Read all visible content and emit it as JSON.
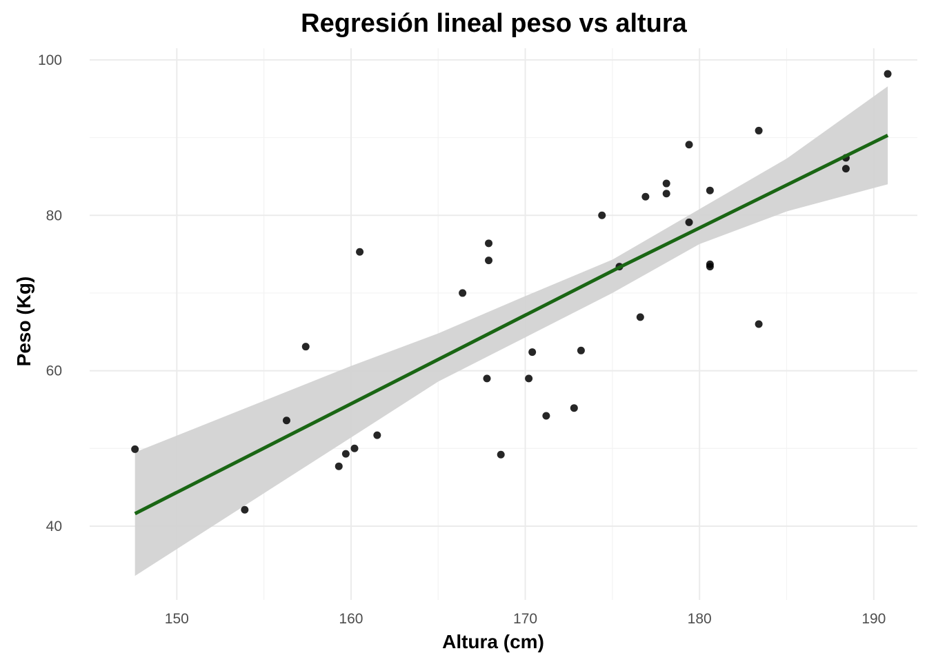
{
  "chart_data": {
    "type": "scatter",
    "title": "Regresión lineal peso vs altura",
    "xlabel": "Altura (cm)",
    "ylabel": "Peso (Kg)",
    "xlim": [
      145,
      192.5
    ],
    "ylim": [
      30.5,
      101.5
    ],
    "x_ticks": [
      150,
      160,
      170,
      180,
      190
    ],
    "y_ticks": [
      40,
      60,
      80,
      100
    ],
    "x_tick_labels": [
      "150",
      "160",
      "170",
      "180",
      "190"
    ],
    "y_tick_labels": [
      "40",
      "60",
      "80",
      "100"
    ],
    "grid": true,
    "colors": {
      "points": "#000000",
      "line": "#1a6614",
      "band": "#d3d3d3"
    },
    "points": [
      {
        "x": 147.6,
        "y": 49.9
      },
      {
        "x": 153.9,
        "y": 42.1
      },
      {
        "x": 156.3,
        "y": 53.6
      },
      {
        "x": 157.4,
        "y": 63.1
      },
      {
        "x": 159.3,
        "y": 47.7
      },
      {
        "x": 159.7,
        "y": 49.3
      },
      {
        "x": 160.2,
        "y": 50.0
      },
      {
        "x": 160.5,
        "y": 75.3
      },
      {
        "x": 161.5,
        "y": 51.7
      },
      {
        "x": 166.4,
        "y": 70.0
      },
      {
        "x": 167.8,
        "y": 59.0
      },
      {
        "x": 167.9,
        "y": 74.2
      },
      {
        "x": 167.9,
        "y": 76.4
      },
      {
        "x": 168.6,
        "y": 49.2
      },
      {
        "x": 170.2,
        "y": 59.0
      },
      {
        "x": 170.4,
        "y": 62.4
      },
      {
        "x": 171.2,
        "y": 54.2
      },
      {
        "x": 172.8,
        "y": 55.2
      },
      {
        "x": 173.2,
        "y": 62.6
      },
      {
        "x": 174.4,
        "y": 80.0
      },
      {
        "x": 175.4,
        "y": 73.4
      },
      {
        "x": 176.6,
        "y": 66.9
      },
      {
        "x": 176.9,
        "y": 82.4
      },
      {
        "x": 178.1,
        "y": 82.8
      },
      {
        "x": 178.1,
        "y": 84.1
      },
      {
        "x": 179.4,
        "y": 79.1
      },
      {
        "x": 179.4,
        "y": 89.1
      },
      {
        "x": 180.6,
        "y": 73.4
      },
      {
        "x": 180.6,
        "y": 73.7
      },
      {
        "x": 180.6,
        "y": 83.2
      },
      {
        "x": 183.4,
        "y": 66.0
      },
      {
        "x": 183.4,
        "y": 90.9
      },
      {
        "x": 188.4,
        "y": 86.0
      },
      {
        "x": 188.4,
        "y": 87.4
      },
      {
        "x": 190.8,
        "y": 98.2
      }
    ],
    "regression": {
      "x": [
        147.6,
        175.4,
        190.8
      ],
      "y": [
        41.6,
        73.3,
        90.3
      ]
    },
    "confidence_band": {
      "x": [
        147.6,
        160,
        165,
        170,
        175,
        180,
        185,
        190.8
      ],
      "upper": [
        49.5,
        60.6,
        64.8,
        69.6,
        74.3,
        80.8,
        87.3,
        96.6
      ],
      "lower": [
        33.6,
        51.4,
        58.6,
        64.3,
        70.0,
        76.3,
        80.5,
        84.0
      ]
    }
  }
}
